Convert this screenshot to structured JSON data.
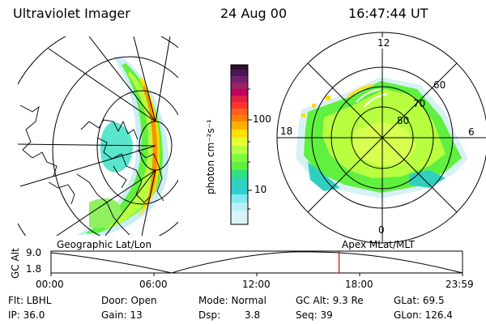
{
  "header": {
    "instrument": "Ultraviolet Imager",
    "date": "24 Aug 00",
    "time": "16:47:44 UT"
  },
  "panels": {
    "left_label": "Geographic Lat/Lon",
    "right_label": "Apex MLat/MLT"
  },
  "colorbar": {
    "unit_label": "photon cm⁻²s⁻¹",
    "tick_labels": [
      "100",
      "10"
    ],
    "colors": [
      "#2b0f2b",
      "#702070",
      "#c00060",
      "#ff3030",
      "#ff8000",
      "#ffe000",
      "#e8ff30",
      "#b8ff40",
      "#60f040",
      "#30e080",
      "#30d0d0",
      "#80e8f0",
      "#d8f4f8"
    ]
  },
  "polar": {
    "mlt_labels": [
      "12",
      "18",
      "6",
      "0"
    ],
    "lat_labels": [
      "60",
      "70",
      "80"
    ]
  },
  "altitude_plot": {
    "y_label": "GC Alt",
    "y_ticks": [
      "9.0",
      "1.8"
    ],
    "x_ticks": [
      "00:00",
      "06:00",
      "12:00",
      "18:00",
      "23:59"
    ],
    "marker_hours": 16.8,
    "marker_color": "#d00000"
  },
  "status": {
    "flt": "Flt: LBHL",
    "ip": "IP: 36.0",
    "door": "Door: Open",
    "gain": "Gain: 13",
    "mode": "Mode: Normal",
    "dsp_label": "Dsp:",
    "dsp_value": "3.8",
    "gc_alt": "GC Alt: 9.3 Re",
    "seq": "Seq: 39",
    "glat": "GLat: 69.5",
    "glon": "GLon: 126.4"
  }
}
